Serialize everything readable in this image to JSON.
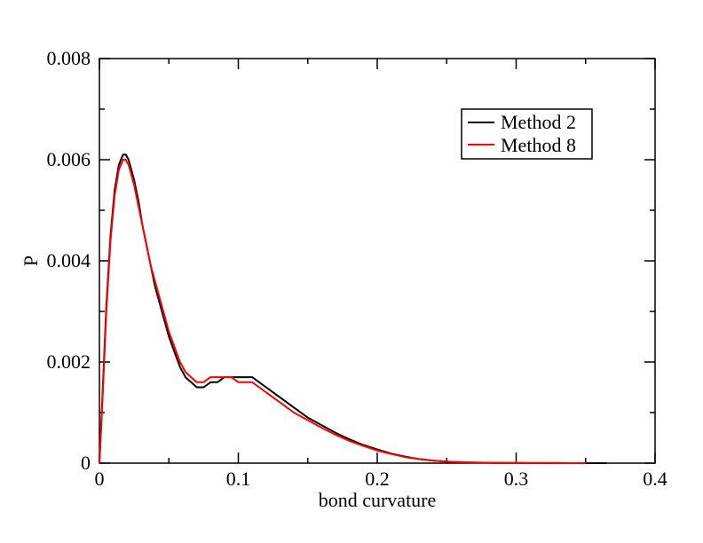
{
  "chart_data": {
    "type": "line",
    "xlabel": "bond curvature",
    "ylabel": "P",
    "xlim": [
      0,
      0.4
    ],
    "ylim": [
      0,
      0.008
    ],
    "x_ticks": [
      "0",
      "0.1",
      "0.2",
      "0.3",
      "0.4"
    ],
    "y_ticks": [
      "0",
      "0.002",
      "0.004",
      "0.006",
      "0.008"
    ],
    "grid": false,
    "legend_position": "top-right",
    "series": [
      {
        "name": "Method 2",
        "color": "#000000",
        "x": [
          0,
          0.002,
          0.005,
          0.008,
          0.011,
          0.014,
          0.017,
          0.019,
          0.021,
          0.023,
          0.025,
          0.028,
          0.031,
          0.034,
          0.037,
          0.04,
          0.043,
          0.046,
          0.05,
          0.054,
          0.058,
          0.062,
          0.066,
          0.07,
          0.075,
          0.08,
          0.085,
          0.09,
          0.095,
          0.1,
          0.105,
          0.11,
          0.115,
          0.12,
          0.125,
          0.13,
          0.135,
          0.14,
          0.15,
          0.16,
          0.17,
          0.18,
          0.19,
          0.2,
          0.21,
          0.22,
          0.23,
          0.24,
          0.25,
          0.26,
          0.27,
          0.28,
          0.29,
          0.3,
          0.31,
          0.32,
          0.33,
          0.34,
          0.35,
          0.36,
          0.365
        ],
        "y": [
          0,
          0.0012,
          0.0031,
          0.0045,
          0.0054,
          0.0059,
          0.0061,
          0.0061,
          0.006,
          0.0058,
          0.0056,
          0.0052,
          0.0047,
          0.0043,
          0.0039,
          0.0035,
          0.0032,
          0.0029,
          0.0025,
          0.0022,
          0.0019,
          0.0017,
          0.0016,
          0.0015,
          0.0015,
          0.0016,
          0.0016,
          0.0017,
          0.0017,
          0.0017,
          0.0017,
          0.0017,
          0.0016,
          0.0015,
          0.0014,
          0.0013,
          0.0012,
          0.0011,
          0.0009,
          0.00075,
          0.0006,
          0.00047,
          0.00036,
          0.00027,
          0.00019,
          0.00013,
          8e-05,
          5e-05,
          3e-05,
          2e-05,
          1e-05,
          7e-06,
          5e-06,
          3e-06,
          2e-06,
          1.5e-06,
          1e-06,
          8e-07,
          5e-07,
          3e-07,
          0
        ]
      },
      {
        "name": "Method 8",
        "color": "#ff0000",
        "x": [
          0,
          0.002,
          0.005,
          0.008,
          0.011,
          0.014,
          0.017,
          0.019,
          0.021,
          0.023,
          0.025,
          0.028,
          0.031,
          0.034,
          0.037,
          0.04,
          0.043,
          0.046,
          0.05,
          0.054,
          0.058,
          0.062,
          0.066,
          0.07,
          0.075,
          0.08,
          0.085,
          0.09,
          0.095,
          0.1,
          0.105,
          0.11,
          0.115,
          0.12,
          0.125,
          0.13,
          0.135,
          0.14,
          0.15,
          0.16,
          0.17,
          0.18,
          0.19,
          0.2,
          0.21,
          0.22,
          0.23,
          0.24,
          0.25,
          0.26,
          0.27,
          0.28,
          0.29,
          0.3,
          0.31,
          0.32,
          0.33,
          0.34,
          0.35
        ],
        "y": [
          0,
          0.0011,
          0.003,
          0.0044,
          0.0053,
          0.0058,
          0.006,
          0.006,
          0.0059,
          0.0057,
          0.0055,
          0.0051,
          0.0047,
          0.0043,
          0.0039,
          0.0036,
          0.0033,
          0.003,
          0.0026,
          0.0023,
          0.002,
          0.0018,
          0.0017,
          0.0016,
          0.0016,
          0.0017,
          0.0017,
          0.0017,
          0.0017,
          0.0016,
          0.0016,
          0.0016,
          0.0015,
          0.0014,
          0.0013,
          0.0012,
          0.0011,
          0.001,
          0.00085,
          0.0007,
          0.00056,
          0.00044,
          0.00034,
          0.00025,
          0.00018,
          0.00012,
          8e-05,
          5e-05,
          3e-05,
          2e-05,
          1.2e-05,
          8e-06,
          5e-06,
          3e-06,
          2e-06,
          1.5e-06,
          1e-06,
          6e-07,
          0
        ]
      }
    ]
  }
}
